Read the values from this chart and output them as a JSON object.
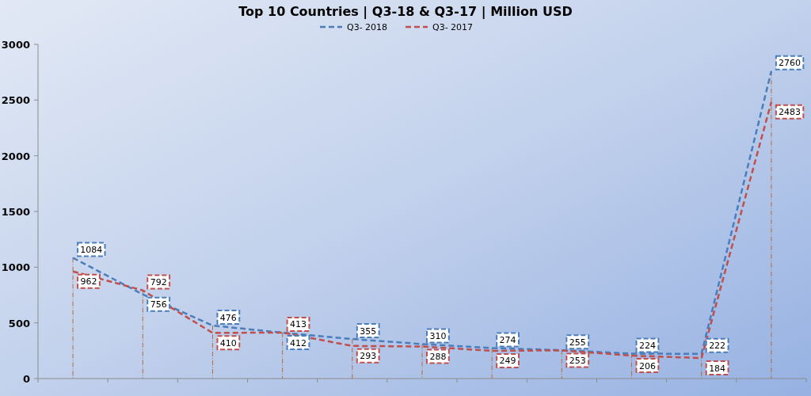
{
  "chart_data": {
    "type": "line",
    "title": "Top 10 Countries | Q3-18 & Q3-17 | Million USD",
    "categories": [
      null,
      null,
      null,
      null,
      null,
      null,
      null,
      null,
      null,
      null,
      null
    ],
    "series": [
      {
        "name": "Q3- 2018",
        "color": "#4a7ebb",
        "values": [
          1084,
          756,
          476,
          412,
          355,
          310,
          274,
          255,
          224,
          222,
          2760
        ]
      },
      {
        "name": "Q3- 2017",
        "color": "#c0504d",
        "values": [
          962,
          792,
          410,
          413,
          293,
          288,
          249,
          253,
          206,
          184,
          2483
        ]
      }
    ],
    "ylim": [
      0,
      3000
    ],
    "yticks": [
      0,
      500,
      1000,
      1500,
      2000,
      2500,
      3000
    ],
    "grid": false,
    "legend": "top",
    "line_style": "dashed",
    "data_labels": true,
    "tick_labels": "y"
  }
}
